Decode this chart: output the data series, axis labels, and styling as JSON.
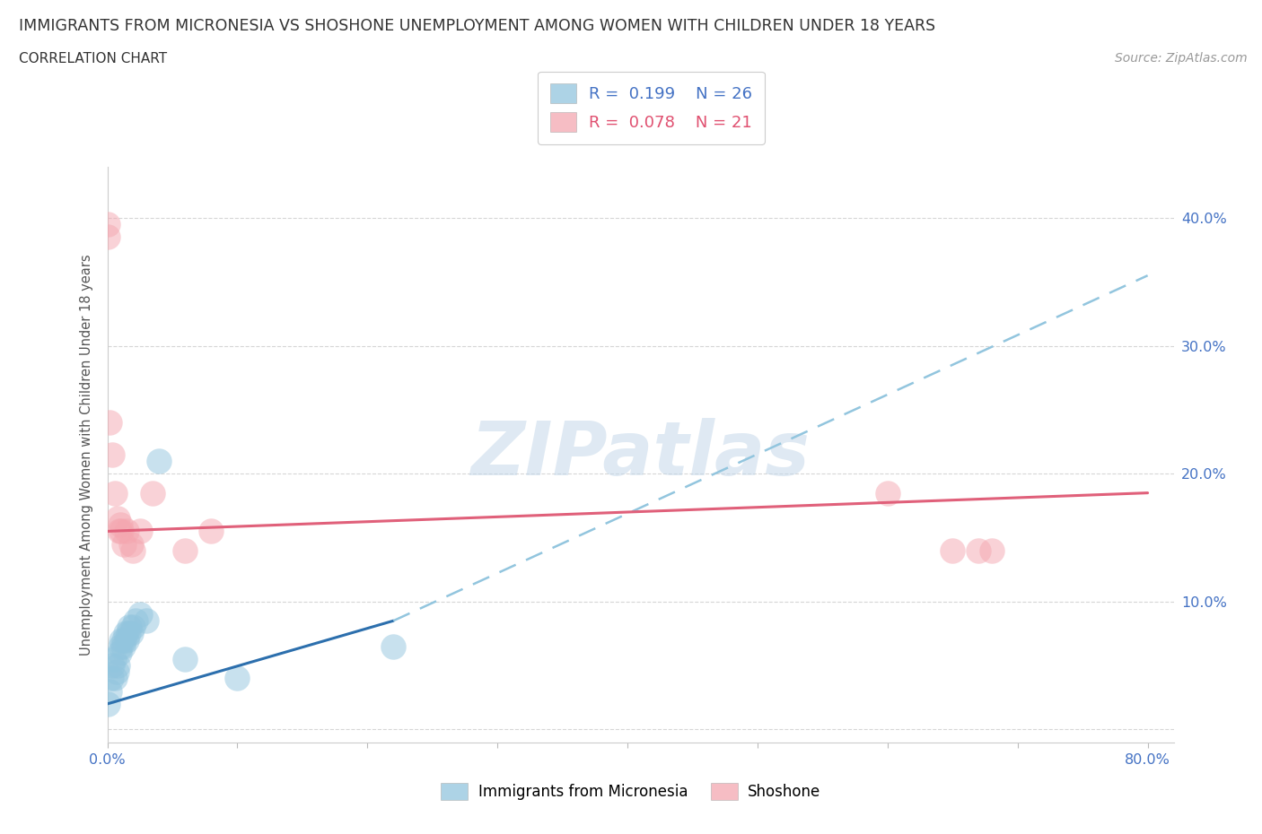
{
  "title": "IMMIGRANTS FROM MICRONESIA VS SHOSHONE UNEMPLOYMENT AMONG WOMEN WITH CHILDREN UNDER 18 YEARS",
  "subtitle": "CORRELATION CHART",
  "source": "Source: ZipAtlas.com",
  "ylabel": "Unemployment Among Women with Children Under 18 years",
  "xlim": [
    0.0,
    0.82
  ],
  "ylim": [
    -0.01,
    0.44
  ],
  "color_micronesia": "#92c5de",
  "color_shoshone": "#f4a7b0",
  "color_mic_line_solid": "#2c6fad",
  "color_mic_line_dash": "#92c5de",
  "color_sho_line": "#e0607a",
  "background_color": "#ffffff",
  "micronesia_x": [
    0.0,
    0.002,
    0.003,
    0.004,
    0.005,
    0.006,
    0.007,
    0.008,
    0.009,
    0.01,
    0.011,
    0.012,
    0.013,
    0.014,
    0.015,
    0.016,
    0.017,
    0.018,
    0.02,
    0.022,
    0.025,
    0.03,
    0.04,
    0.06,
    0.1,
    0.22
  ],
  "micronesia_y": [
    0.02,
    0.03,
    0.04,
    0.05,
    0.055,
    0.04,
    0.045,
    0.05,
    0.06,
    0.065,
    0.07,
    0.065,
    0.07,
    0.075,
    0.07,
    0.075,
    0.08,
    0.075,
    0.08,
    0.085,
    0.09,
    0.085,
    0.21,
    0.055,
    0.04,
    0.065
  ],
  "shoshone_x": [
    0.0,
    0.0,
    0.002,
    0.004,
    0.006,
    0.008,
    0.009,
    0.01,
    0.011,
    0.013,
    0.015,
    0.018,
    0.02,
    0.025,
    0.035,
    0.06,
    0.08,
    0.6,
    0.65,
    0.67,
    0.68
  ],
  "shoshone_y": [
    0.385,
    0.395,
    0.24,
    0.215,
    0.185,
    0.165,
    0.155,
    0.16,
    0.155,
    0.145,
    0.155,
    0.145,
    0.14,
    0.155,
    0.185,
    0.14,
    0.155,
    0.185,
    0.14,
    0.14,
    0.14
  ],
  "mic_line_x0": 0.0,
  "mic_line_x_solid_end": 0.22,
  "mic_line_x_end": 0.8,
  "mic_line_y0": 0.02,
  "mic_line_y_solid_end": 0.085,
  "mic_line_y_end": 0.355,
  "sho_line_x0": 0.0,
  "sho_line_x_end": 0.8,
  "sho_line_y0": 0.155,
  "sho_line_y_end": 0.185
}
